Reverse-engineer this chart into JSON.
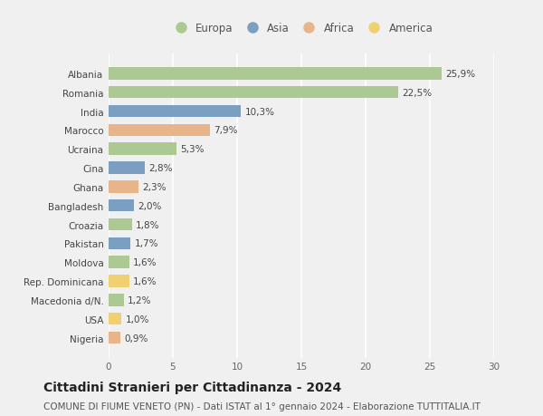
{
  "countries": [
    "Albania",
    "Romania",
    "India",
    "Marocco",
    "Ucraina",
    "Cina",
    "Ghana",
    "Bangladesh",
    "Croazia",
    "Pakistan",
    "Moldova",
    "Rep. Dominicana",
    "Macedonia d/N.",
    "USA",
    "Nigeria"
  ],
  "values": [
    25.9,
    22.5,
    10.3,
    7.9,
    5.3,
    2.8,
    2.3,
    2.0,
    1.8,
    1.7,
    1.6,
    1.6,
    1.2,
    1.0,
    0.9
  ],
  "labels": [
    "25,9%",
    "22,5%",
    "10,3%",
    "7,9%",
    "5,3%",
    "2,8%",
    "2,3%",
    "2,0%",
    "1,8%",
    "1,7%",
    "1,6%",
    "1,6%",
    "1,2%",
    "1,0%",
    "0,9%"
  ],
  "continents": [
    "Europa",
    "Europa",
    "Asia",
    "Africa",
    "Europa",
    "Asia",
    "Africa",
    "Asia",
    "Europa",
    "Asia",
    "Europa",
    "America",
    "Europa",
    "America",
    "Africa"
  ],
  "continent_colors": {
    "Europa": "#adc993",
    "Asia": "#7a9fc0",
    "Africa": "#e8b48a",
    "America": "#f0d070"
  },
  "legend_order": [
    "Europa",
    "Asia",
    "Africa",
    "America"
  ],
  "legend_colors": [
    "#adc993",
    "#7a9fc0",
    "#e8b48a",
    "#f0d070"
  ],
  "xlim": [
    0,
    30
  ],
  "xticks": [
    0,
    5,
    10,
    15,
    20,
    25,
    30
  ],
  "title": "Cittadini Stranieri per Cittadinanza - 2024",
  "subtitle": "COMUNE DI FIUME VENETO (PN) - Dati ISTAT al 1° gennaio 2024 - Elaborazione TUTTITALIA.IT",
  "bg_color": "#f0f0f0",
  "bar_height": 0.65,
  "title_fontsize": 10,
  "subtitle_fontsize": 7.5,
  "label_fontsize": 7.5,
  "ytick_fontsize": 7.5,
  "xtick_fontsize": 7.5,
  "legend_fontsize": 8.5
}
